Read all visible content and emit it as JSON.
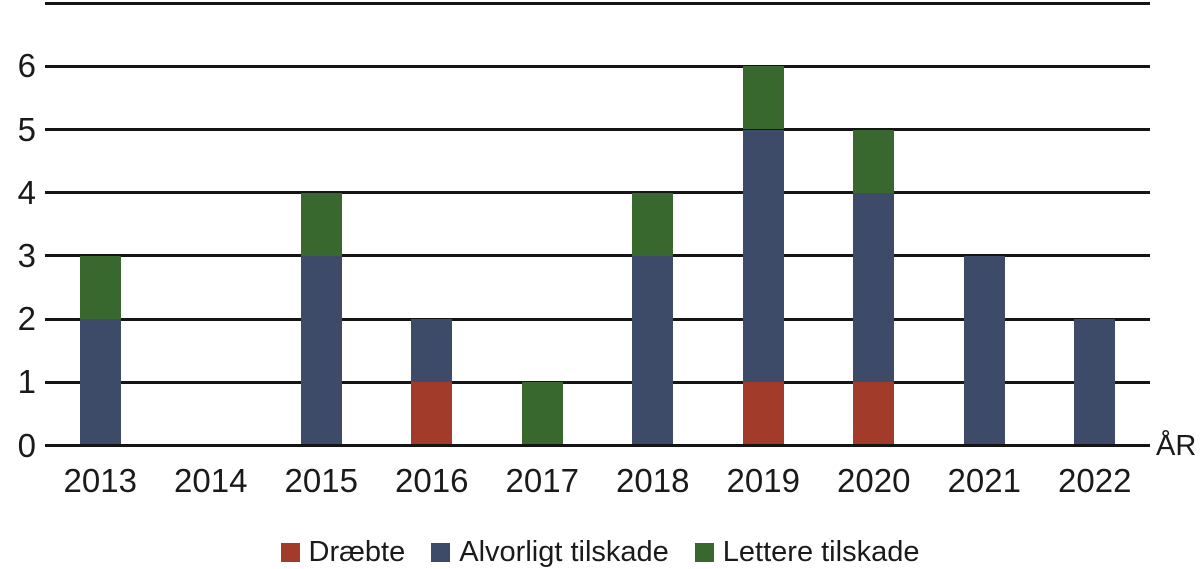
{
  "chart_data": {
    "type": "bar",
    "variant": "stacked",
    "title": "",
    "xlabel": "ÅR",
    "ylabel": "",
    "categories": [
      "2013",
      "2014",
      "2015",
      "2016",
      "2017",
      "2018",
      "2019",
      "2020",
      "2021",
      "2022"
    ],
    "series": [
      {
        "name": "Dræbte",
        "color": "#a23b2a",
        "values": [
          0,
          0,
          0,
          1,
          0,
          0,
          1,
          1,
          0,
          0
        ]
      },
      {
        "name": "Alvorligt tilskade",
        "color": "#3d4a68",
        "values": [
          2,
          0,
          3,
          1,
          0,
          3,
          4,
          3,
          3,
          2
        ]
      },
      {
        "name": "Lettere tilskade",
        "color": "#38682e",
        "values": [
          1,
          0,
          1,
          0,
          1,
          1,
          1,
          1,
          0,
          0
        ]
      }
    ],
    "totals": [
      3,
      0,
      4,
      2,
      1,
      4,
      6,
      5,
      3,
      2
    ],
    "y_ticks": [
      0,
      1,
      2,
      3,
      4,
      5,
      6
    ],
    "ylim": [
      0,
      7
    ],
    "grid": "horizontal",
    "grid_color": "#151515",
    "legend_position": "bottom"
  }
}
